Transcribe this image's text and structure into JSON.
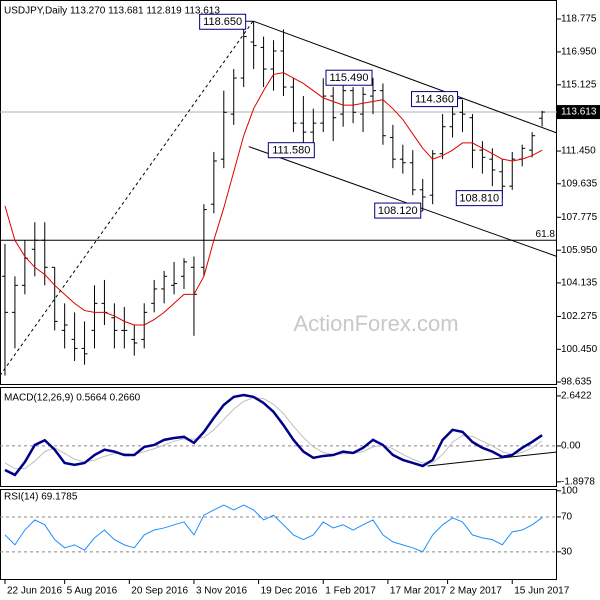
{
  "chart_data": [
    {
      "type": "ohlc",
      "title": "USDJPY,Daily  113.270 113.681 112.819 113.613",
      "watermark": "ActionForex.com",
      "color": "#000000",
      "xlim": [
        -0.5,
        55.5
      ],
      "ylim": [
        98.47,
        119.83
      ],
      "yticks": [
        118.775,
        {
          "value": 116.95,
          "label": "116.950"
        },
        115.125,
        {
          "value": 111.45,
          "label": "111.450"
        },
        109.635,
        107.775,
        {
          "value": 105.95,
          "label": "105.950"
        },
        104.135,
        102.275,
        {
          "value": 100.45,
          "label": "100.450"
        },
        98.635
      ],
      "open": [
        104.5,
        102.5,
        104.0,
        106.0,
        106.5,
        105.0,
        101.5,
        101.0,
        100.5,
        101.5,
        103.0,
        102.2,
        101.5,
        101.0,
        101.0,
        103.0,
        103.8,
        104.0,
        104.5,
        105.0,
        105.0,
        108.5,
        111.0,
        113.5,
        115.5,
        117.5,
        117.2,
        116.0,
        117.0,
        115.0,
        113.0,
        112.5,
        113.0,
        114.5,
        113.5,
        114.8,
        113.5,
        114.5,
        114.8,
        112.2,
        111.0,
        110.8,
        109.3,
        109.0,
        111.3,
        112.8,
        113.6,
        113.3,
        111.5,
        111.0,
        110.3,
        109.5,
        111.0,
        111.5,
        113.27
      ],
      "high": [
        106.3,
        104.5,
        106.5,
        107.5,
        107.5,
        105.0,
        103.0,
        102.5,
        102.0,
        104.0,
        104.3,
        103.0,
        102.8,
        101.8,
        103.0,
        104.3,
        104.8,
        105.3,
        105.5,
        105.6,
        108.5,
        111.4,
        114.8,
        116.0,
        118.2,
        118.65,
        117.8,
        117.6,
        118.2,
        115.5,
        114.5,
        113.8,
        115.49,
        115.0,
        115.2,
        115.0,
        115.0,
        115.5,
        115.2,
        112.9,
        111.8,
        111.5,
        109.9,
        111.5,
        113.5,
        114.36,
        114.3,
        113.5,
        112.0,
        111.6,
        111.0,
        111.4,
        111.8,
        112.5,
        113.681
      ],
      "low": [
        99.0,
        100.5,
        103.5,
        104.5,
        104.0,
        101.5,
        100.5,
        99.8,
        99.6,
        100.5,
        101.8,
        100.5,
        100.5,
        100.1,
        100.5,
        102.5,
        103.0,
        103.5,
        103.8,
        101.2,
        104.5,
        108.0,
        110.5,
        112.9,
        115.0,
        116.0,
        115.0,
        114.8,
        114.5,
        112.5,
        111.6,
        111.58,
        112.5,
        112.0,
        112.8,
        113.0,
        112.5,
        113.5,
        111.8,
        110.5,
        110.2,
        109.0,
        108.12,
        108.5,
        111.0,
        112.2,
        112.5,
        110.5,
        110.2,
        109.5,
        108.81,
        109.3,
        110.6,
        111.1,
        112.819
      ],
      "close": [
        102.5,
        104.0,
        105.5,
        106.5,
        105.0,
        102.0,
        101.8,
        100.5,
        100.2,
        103.0,
        102.5,
        101.5,
        101.5,
        100.8,
        102.5,
        103.8,
        104.5,
        104.1,
        105.3,
        103.5,
        108.2,
        110.9,
        113.6,
        115.5,
        117.8,
        117.3,
        116.0,
        117.0,
        115.0,
        113.0,
        112.5,
        113.0,
        114.5,
        113.3,
        114.8,
        113.6,
        114.6,
        114.8,
        112.3,
        111.0,
        110.8,
        109.3,
        108.9,
        111.3,
        112.8,
        113.5,
        113.5,
        111.5,
        111.1,
        110.4,
        109.5,
        111.0,
        111.6,
        112.3,
        113.613
      ],
      "overlays": [
        {
          "color": "#e00000",
          "values": [
            108.4,
            106.5,
            105.6,
            105.0,
            104.6,
            104.0,
            103.5,
            103.0,
            102.6,
            102.5,
            102.5,
            102.3,
            102.0,
            101.8,
            101.8,
            102.1,
            102.5,
            103.0,
            103.5,
            103.5,
            104.5,
            106.5,
            108.3,
            110.3,
            112.3,
            113.8,
            114.8,
            115.7,
            115.8,
            115.5,
            115.2,
            114.8,
            114.4,
            114.2,
            114.0,
            114.0,
            114.1,
            114.2,
            114.3,
            113.8,
            113.2,
            112.4,
            111.6,
            111.0,
            111.2,
            111.5,
            111.9,
            111.9,
            111.6,
            111.3,
            111.0,
            110.9,
            111.0,
            111.2,
            111.5
          ]
        }
      ],
      "trendlines": [
        {
          "x": [
            25,
            55.5
          ],
          "y": [
            118.65,
            112.45
          ],
          "style": "solid"
        },
        {
          "x": [
            24.5,
            55.5
          ],
          "y": [
            111.7,
            105.6
          ],
          "style": "solid"
        },
        {
          "x": [
            -0.5,
            25
          ],
          "y": [
            99.0,
            118.7
          ],
          "style": "dotted"
        }
      ],
      "levels": [
        {
          "value": 106.5,
          "label": "61.8"
        }
      ],
      "last_price": {
        "value": 113.613,
        "label": "113.613"
      },
      "annotations": [
        {
          "x": 25,
          "value": 118.65,
          "label": "118.650"
        },
        {
          "x": 37,
          "value": 115.49,
          "label": "115.490"
        },
        {
          "x": 46,
          "value": 114.36,
          "label": "114.360"
        },
        {
          "x": 31,
          "value": 111.58,
          "label": "111.580"
        },
        {
          "x": 42,
          "value": 108.12,
          "label": "108.120"
        },
        {
          "x": 50,
          "value": 108.81,
          "label": "108.810"
        }
      ]
    },
    {
      "type": "line",
      "title": "MACD(12,26,9) 0.5664 0.2660",
      "xlim": [
        -0.5,
        55.5
      ],
      "ylim": [
        -2.17,
        3.06
      ],
      "grid": "dashed",
      "yticks": [
        2.6422,
        {
          "value": 0,
          "label": "0.00"
        },
        -1.8978
      ],
      "series": [
        {
          "color": "#c0c0c0",
          "width": 1,
          "values": [
            -0.9,
            -1.2,
            -1.2,
            -0.8,
            -0.3,
            -0.1,
            -0.4,
            -0.7,
            -0.85,
            -0.75,
            -0.55,
            -0.4,
            -0.4,
            -0.45,
            -0.3,
            -0.15,
            0.05,
            0.25,
            0.38,
            0.35,
            0.45,
            0.85,
            1.4,
            1.95,
            2.35,
            2.55,
            2.5,
            2.2,
            1.7,
            1.05,
            0.45,
            -0.05,
            -0.35,
            -0.45,
            -0.42,
            -0.4,
            -0.3,
            -0.05,
            0.05,
            -0.15,
            -0.45,
            -0.7,
            -0.9,
            -0.9,
            -0.45,
            0.2,
            0.55,
            0.5,
            0.25,
            0.0,
            -0.3,
            -0.45,
            -0.35,
            -0.1,
            0.266
          ]
        },
        {
          "color": "#00008b",
          "width": 2.5,
          "values": [
            -1.27,
            -1.53,
            -0.85,
            0.05,
            0.3,
            -0.2,
            -0.9,
            -1.0,
            -0.9,
            -0.48,
            -0.2,
            -0.3,
            -0.48,
            -0.48,
            -0.05,
            0.05,
            0.32,
            0.42,
            0.48,
            0.16,
            0.74,
            1.48,
            2.17,
            2.59,
            2.69,
            2.59,
            2.27,
            1.8,
            1.1,
            0.32,
            -0.3,
            -0.63,
            -0.53,
            -0.48,
            -0.3,
            -0.37,
            -0.1,
            0.32,
            0.05,
            -0.48,
            -0.74,
            -0.9,
            -1.06,
            -0.74,
            0.32,
            0.85,
            0.74,
            0.21,
            -0.1,
            -0.3,
            -0.58,
            -0.48,
            -0.1,
            0.21,
            0.5664
          ]
        }
      ],
      "trendlines": [
        {
          "x": [
            42.5,
            55.5
          ],
          "y": [
            -1.06,
            -0.32
          ],
          "style": "solid"
        }
      ]
    },
    {
      "type": "line",
      "title": "RSI(14) 69.1785",
      "xlim": [
        -0.5,
        55.5
      ],
      "ylim": [
        -2.3,
        100.9
      ],
      "grid": "dashed",
      "yticks": [
        100,
        70,
        30
      ],
      "xticks": [
        {
          "value": 0,
          "label": "22 Jun 2016"
        },
        {
          "value": 6,
          "label": "5 Aug 2016"
        },
        {
          "value": 12.5,
          "label": "20 Sep 2016"
        },
        {
          "value": 19,
          "label": "3 Nov 2016"
        },
        {
          "value": 25.5,
          "label": "19 Dec 2016"
        },
        {
          "value": 32,
          "label": "1 Feb 2017"
        },
        {
          "value": 38.5,
          "label": "17 Mar 2017"
        },
        {
          "value": 44.5,
          "label": "2 May 2017"
        },
        {
          "value": 51,
          "label": "15 Jun 2017"
        }
      ],
      "series": [
        {
          "color": "#1e90ff",
          "width": 1,
          "values": [
            49.4,
            38,
            55,
            66.6,
            61,
            44,
            34.6,
            38,
            32,
            46,
            55,
            44,
            38,
            34.6,
            49.4,
            55,
            57.4,
            61,
            64.3,
            49.4,
            72,
            78,
            83.7,
            78,
            83.7,
            78,
            66.6,
            72,
            61,
            49.4,
            44,
            49.4,
            64.3,
            57.4,
            61,
            55,
            61,
            66.6,
            49.4,
            41.4,
            38,
            34.6,
            30,
            49.4,
            61,
            68.9,
            64.3,
            49.4,
            46,
            44,
            38,
            52.9,
            55,
            61,
            69.1785
          ]
        }
      ]
    }
  ]
}
